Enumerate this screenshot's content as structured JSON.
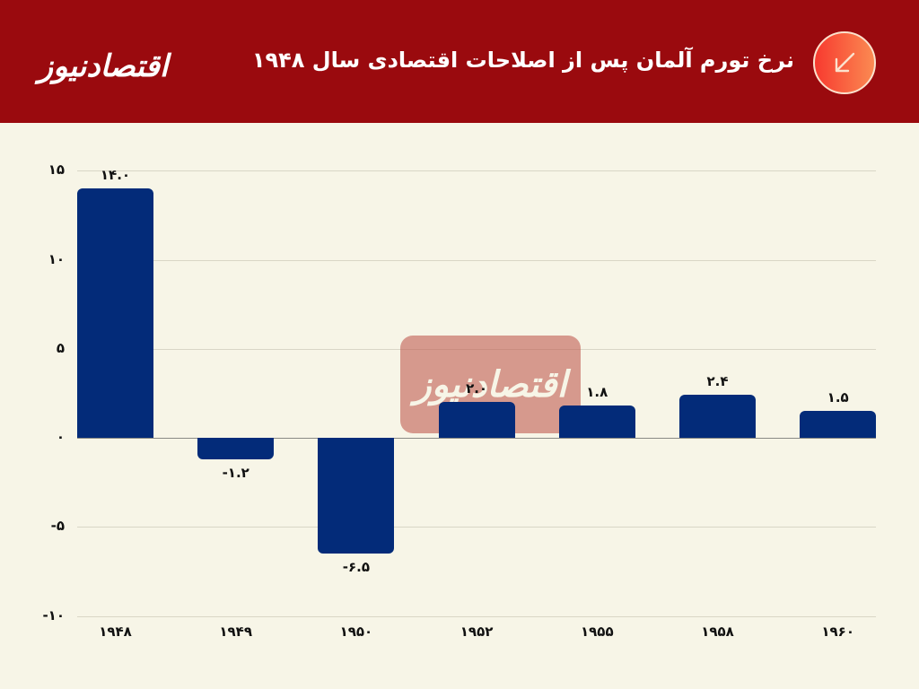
{
  "header": {
    "logo_text": "اقتصادنیوز",
    "title": "نرخ تورم آلمان پس از اصلاحات اقتصادی سال ۱۹۴۸",
    "icon": "arrow-down-left-icon",
    "background_color": "#9a0a0e"
  },
  "watermark": {
    "text": "اقتصادنیوز"
  },
  "chart_data": {
    "type": "bar",
    "title": "نرخ تورم آلمان پس از اصلاحات اقتصادی سال ۱۹۴۸",
    "xlabel": "",
    "ylabel": "",
    "categories": [
      "1948",
      "1949",
      "1950",
      "1952",
      "1955",
      "1958",
      "1960"
    ],
    "category_labels": [
      "۱۹۴۸",
      "۱۹۴۹",
      "۱۹۵۰",
      "۱۹۵۲",
      "۱۹۵۵",
      "۱۹۵۸",
      "۱۹۶۰"
    ],
    "values": [
      14.0,
      -1.2,
      -6.5,
      2.0,
      1.8,
      2.4,
      1.5
    ],
    "value_labels": [
      "۱۴.۰",
      "-۱.۲",
      "-۶.۵",
      "۲.۰",
      "۱.۸",
      "۲.۴",
      "۱.۵"
    ],
    "ylim": [
      -10,
      15
    ],
    "yticks": [
      15,
      10,
      5,
      0,
      -5,
      -10
    ],
    "ytick_labels": [
      "۱۵",
      "۱۰",
      "۵",
      "۰",
      "-۵",
      "-۱۰"
    ],
    "grid": true,
    "legend": null,
    "bar_color": "#032b79",
    "background_color": "#f7f5e7"
  }
}
